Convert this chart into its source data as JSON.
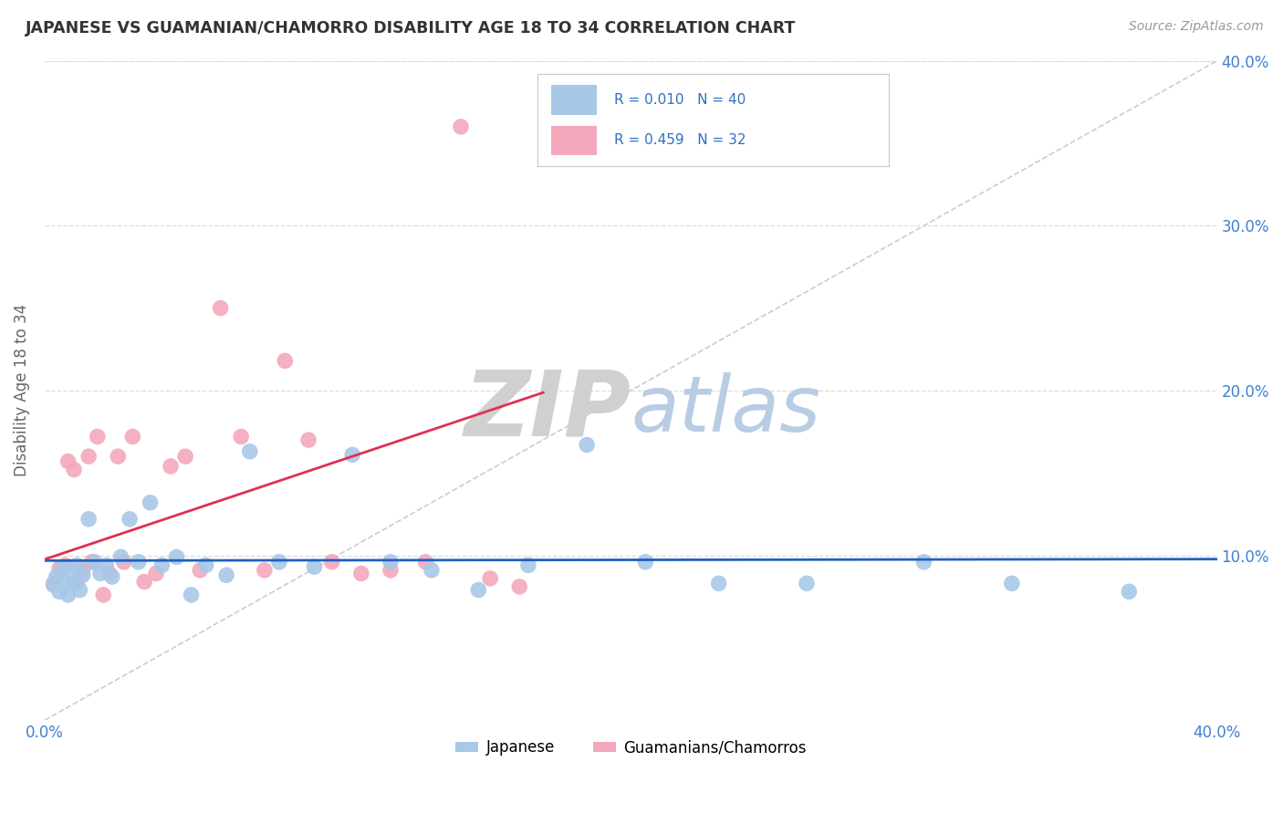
{
  "title": "JAPANESE VS GUAMANIAN/CHAMORRO DISABILITY AGE 18 TO 34 CORRELATION CHART",
  "source": "Source: ZipAtlas.com",
  "ylabel": "Disability Age 18 to 34",
  "xlim": [
    0.0,
    0.4
  ],
  "ylim": [
    0.0,
    0.4
  ],
  "R_japanese": 0.01,
  "N_japanese": 40,
  "R_guamanian": 0.459,
  "N_guamanian": 32,
  "color_japanese": "#a8c8e8",
  "color_guamanian": "#f4a8bc",
  "color_japanese_line": "#2060c0",
  "color_guamanian_line": "#e03050",
  "color_diagonal": "#cccccc",
  "watermark_zip_color": "#d0d0d0",
  "watermark_atlas_color": "#b8cce4",
  "legend_label_japanese": "Japanese",
  "legend_label_guamanian": "Guamanians/Chamorros",
  "japanese_x": [
    0.003,
    0.004,
    0.005,
    0.006,
    0.007,
    0.008,
    0.009,
    0.01,
    0.011,
    0.012,
    0.013,
    0.015,
    0.017,
    0.019,
    0.021,
    0.023,
    0.026,
    0.029,
    0.032,
    0.036,
    0.04,
    0.045,
    0.05,
    0.055,
    0.062,
    0.07,
    0.08,
    0.092,
    0.105,
    0.118,
    0.132,
    0.148,
    0.165,
    0.185,
    0.205,
    0.23,
    0.26,
    0.3,
    0.33,
    0.37
  ],
  "japanese_y": [
    0.082,
    0.087,
    0.078,
    0.092,
    0.084,
    0.076,
    0.09,
    0.083,
    0.094,
    0.079,
    0.088,
    0.122,
    0.096,
    0.089,
    0.094,
    0.087,
    0.099,
    0.122,
    0.096,
    0.132,
    0.094,
    0.099,
    0.076,
    0.094,
    0.088,
    0.163,
    0.096,
    0.093,
    0.161,
    0.096,
    0.091,
    0.079,
    0.094,
    0.167,
    0.096,
    0.083,
    0.083,
    0.096,
    0.083,
    0.078
  ],
  "guamanian_x": [
    0.003,
    0.005,
    0.007,
    0.008,
    0.01,
    0.011,
    0.013,
    0.015,
    0.016,
    0.018,
    0.02,
    0.022,
    0.025,
    0.027,
    0.03,
    0.034,
    0.038,
    0.043,
    0.048,
    0.053,
    0.06,
    0.067,
    0.075,
    0.082,
    0.09,
    0.098,
    0.108,
    0.118,
    0.13,
    0.142,
    0.152,
    0.162
  ],
  "guamanian_y": [
    0.083,
    0.092,
    0.094,
    0.157,
    0.152,
    0.084,
    0.091,
    0.16,
    0.096,
    0.172,
    0.076,
    0.089,
    0.16,
    0.096,
    0.172,
    0.084,
    0.089,
    0.154,
    0.16,
    0.091,
    0.25,
    0.172,
    0.091,
    0.218,
    0.17,
    0.096,
    0.089,
    0.091,
    0.096,
    0.36,
    0.086,
    0.081
  ]
}
